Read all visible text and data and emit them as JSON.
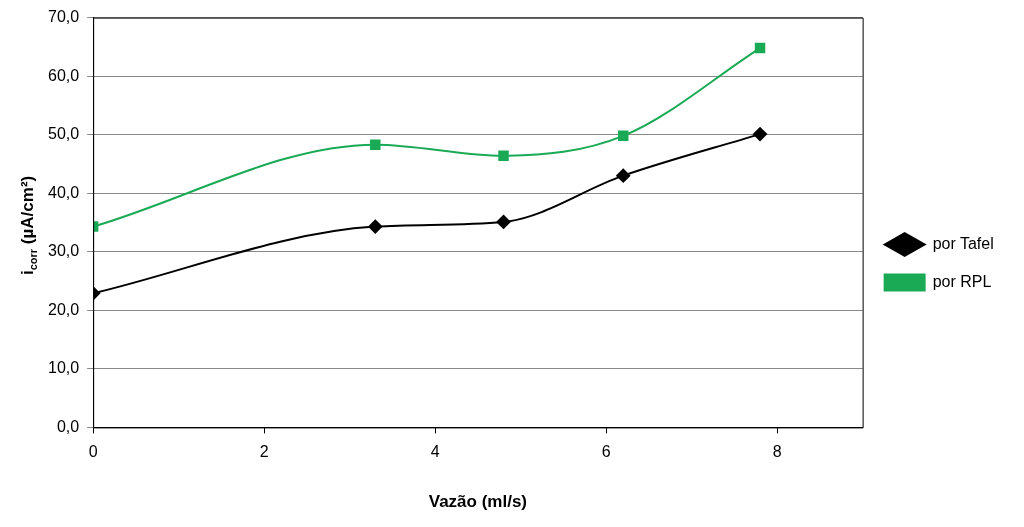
{
  "chart_data": {
    "type": "line",
    "xlabel": "Vazão (ml/s)",
    "ylabel": "i$_{corr}$ (µA/cm²)",
    "xlim": [
      0,
      9
    ],
    "xticks": [
      0,
      2,
      4,
      6,
      8
    ],
    "ylim": [
      0,
      70
    ],
    "yticks": [
      {
        "value": 0,
        "label": "0,0"
      },
      {
        "value": 10,
        "label": "10,0"
      },
      {
        "value": 20,
        "label": "20,0"
      },
      {
        "value": 30,
        "label": "30,0"
      },
      {
        "value": 40,
        "label": "40,0"
      },
      {
        "value": 50,
        "label": "50,0"
      },
      {
        "value": 60,
        "label": "60,0"
      },
      {
        "value": 70,
        "label": "70,0"
      }
    ],
    "grid": "y",
    "legend": "right",
    "series": [
      {
        "name": "por Tafel",
        "color": "#000000",
        "marker": "diamond",
        "x": [
          0,
          3.3,
          4.8,
          6.2,
          7.8
        ],
        "values": [
          22.9,
          34.3,
          35.1,
          43.0,
          50.1
        ]
      },
      {
        "name": "por RPL",
        "color": "#1aaa55",
        "marker": "square",
        "x": [
          0,
          3.3,
          4.8,
          6.2,
          7.8
        ],
        "values": [
          34.3,
          48.3,
          46.4,
          49.8,
          64.8
        ]
      }
    ]
  }
}
